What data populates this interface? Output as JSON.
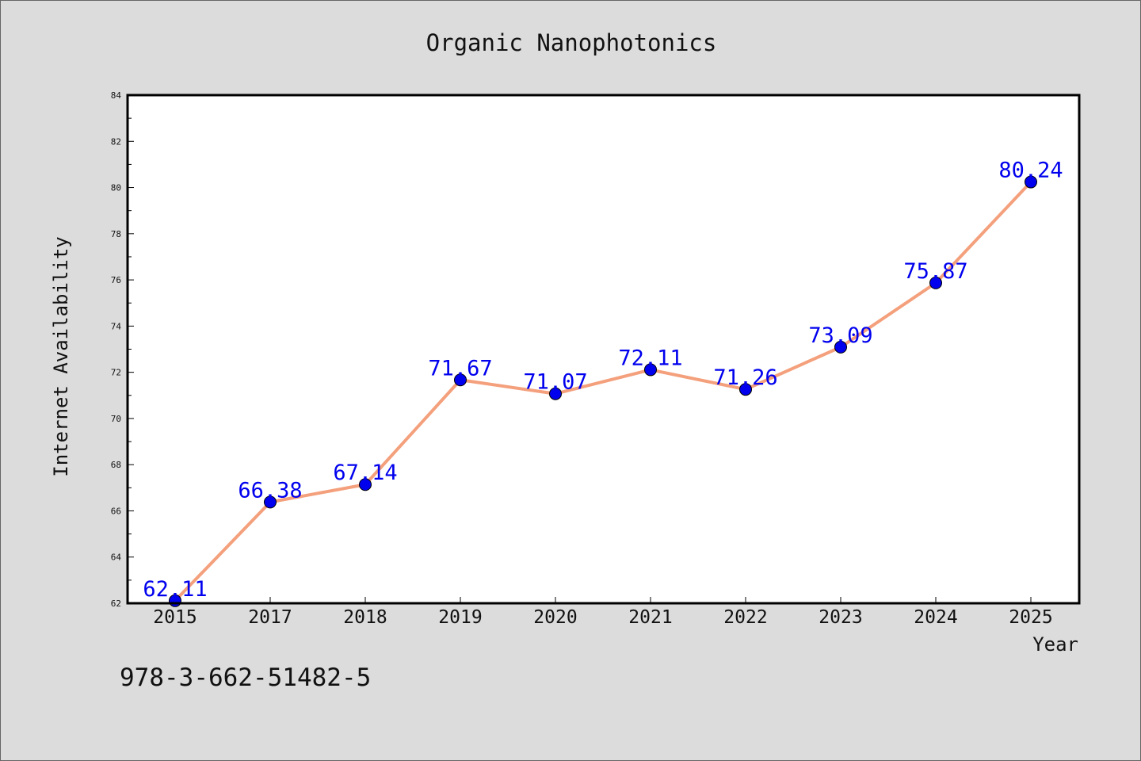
{
  "chart_data": {
    "type": "line",
    "title": "Organic Nanophotonics",
    "xlabel": "Year",
    "ylabel": "Internet Availability",
    "categories": [
      "2015",
      "2017",
      "2018",
      "2019",
      "2020",
      "2021",
      "2022",
      "2023",
      "2024",
      "2025"
    ],
    "series": [
      {
        "values": [
          62.11,
          66.38,
          67.14,
          71.67,
          71.07,
          72.11,
          71.26,
          73.09,
          75.87,
          80.24
        ],
        "labels": [
          "62.11",
          "66.38",
          "67.14",
          "71.67",
          "71.07",
          "72.11",
          "71.26",
          "73.09",
          "75.87",
          "80.24"
        ],
        "line_color": "#f4a07c",
        "marker_color": "#0000ee"
      }
    ],
    "ylim": [
      62,
      84
    ],
    "yticks": [
      "62",
      "64",
      "66",
      "68",
      "70",
      "72",
      "74",
      "76",
      "78",
      "80",
      "82",
      "84"
    ],
    "grid": false,
    "legend": "none",
    "label_color": "#0000ee"
  },
  "footer_code": "978-3-662-51482-5"
}
